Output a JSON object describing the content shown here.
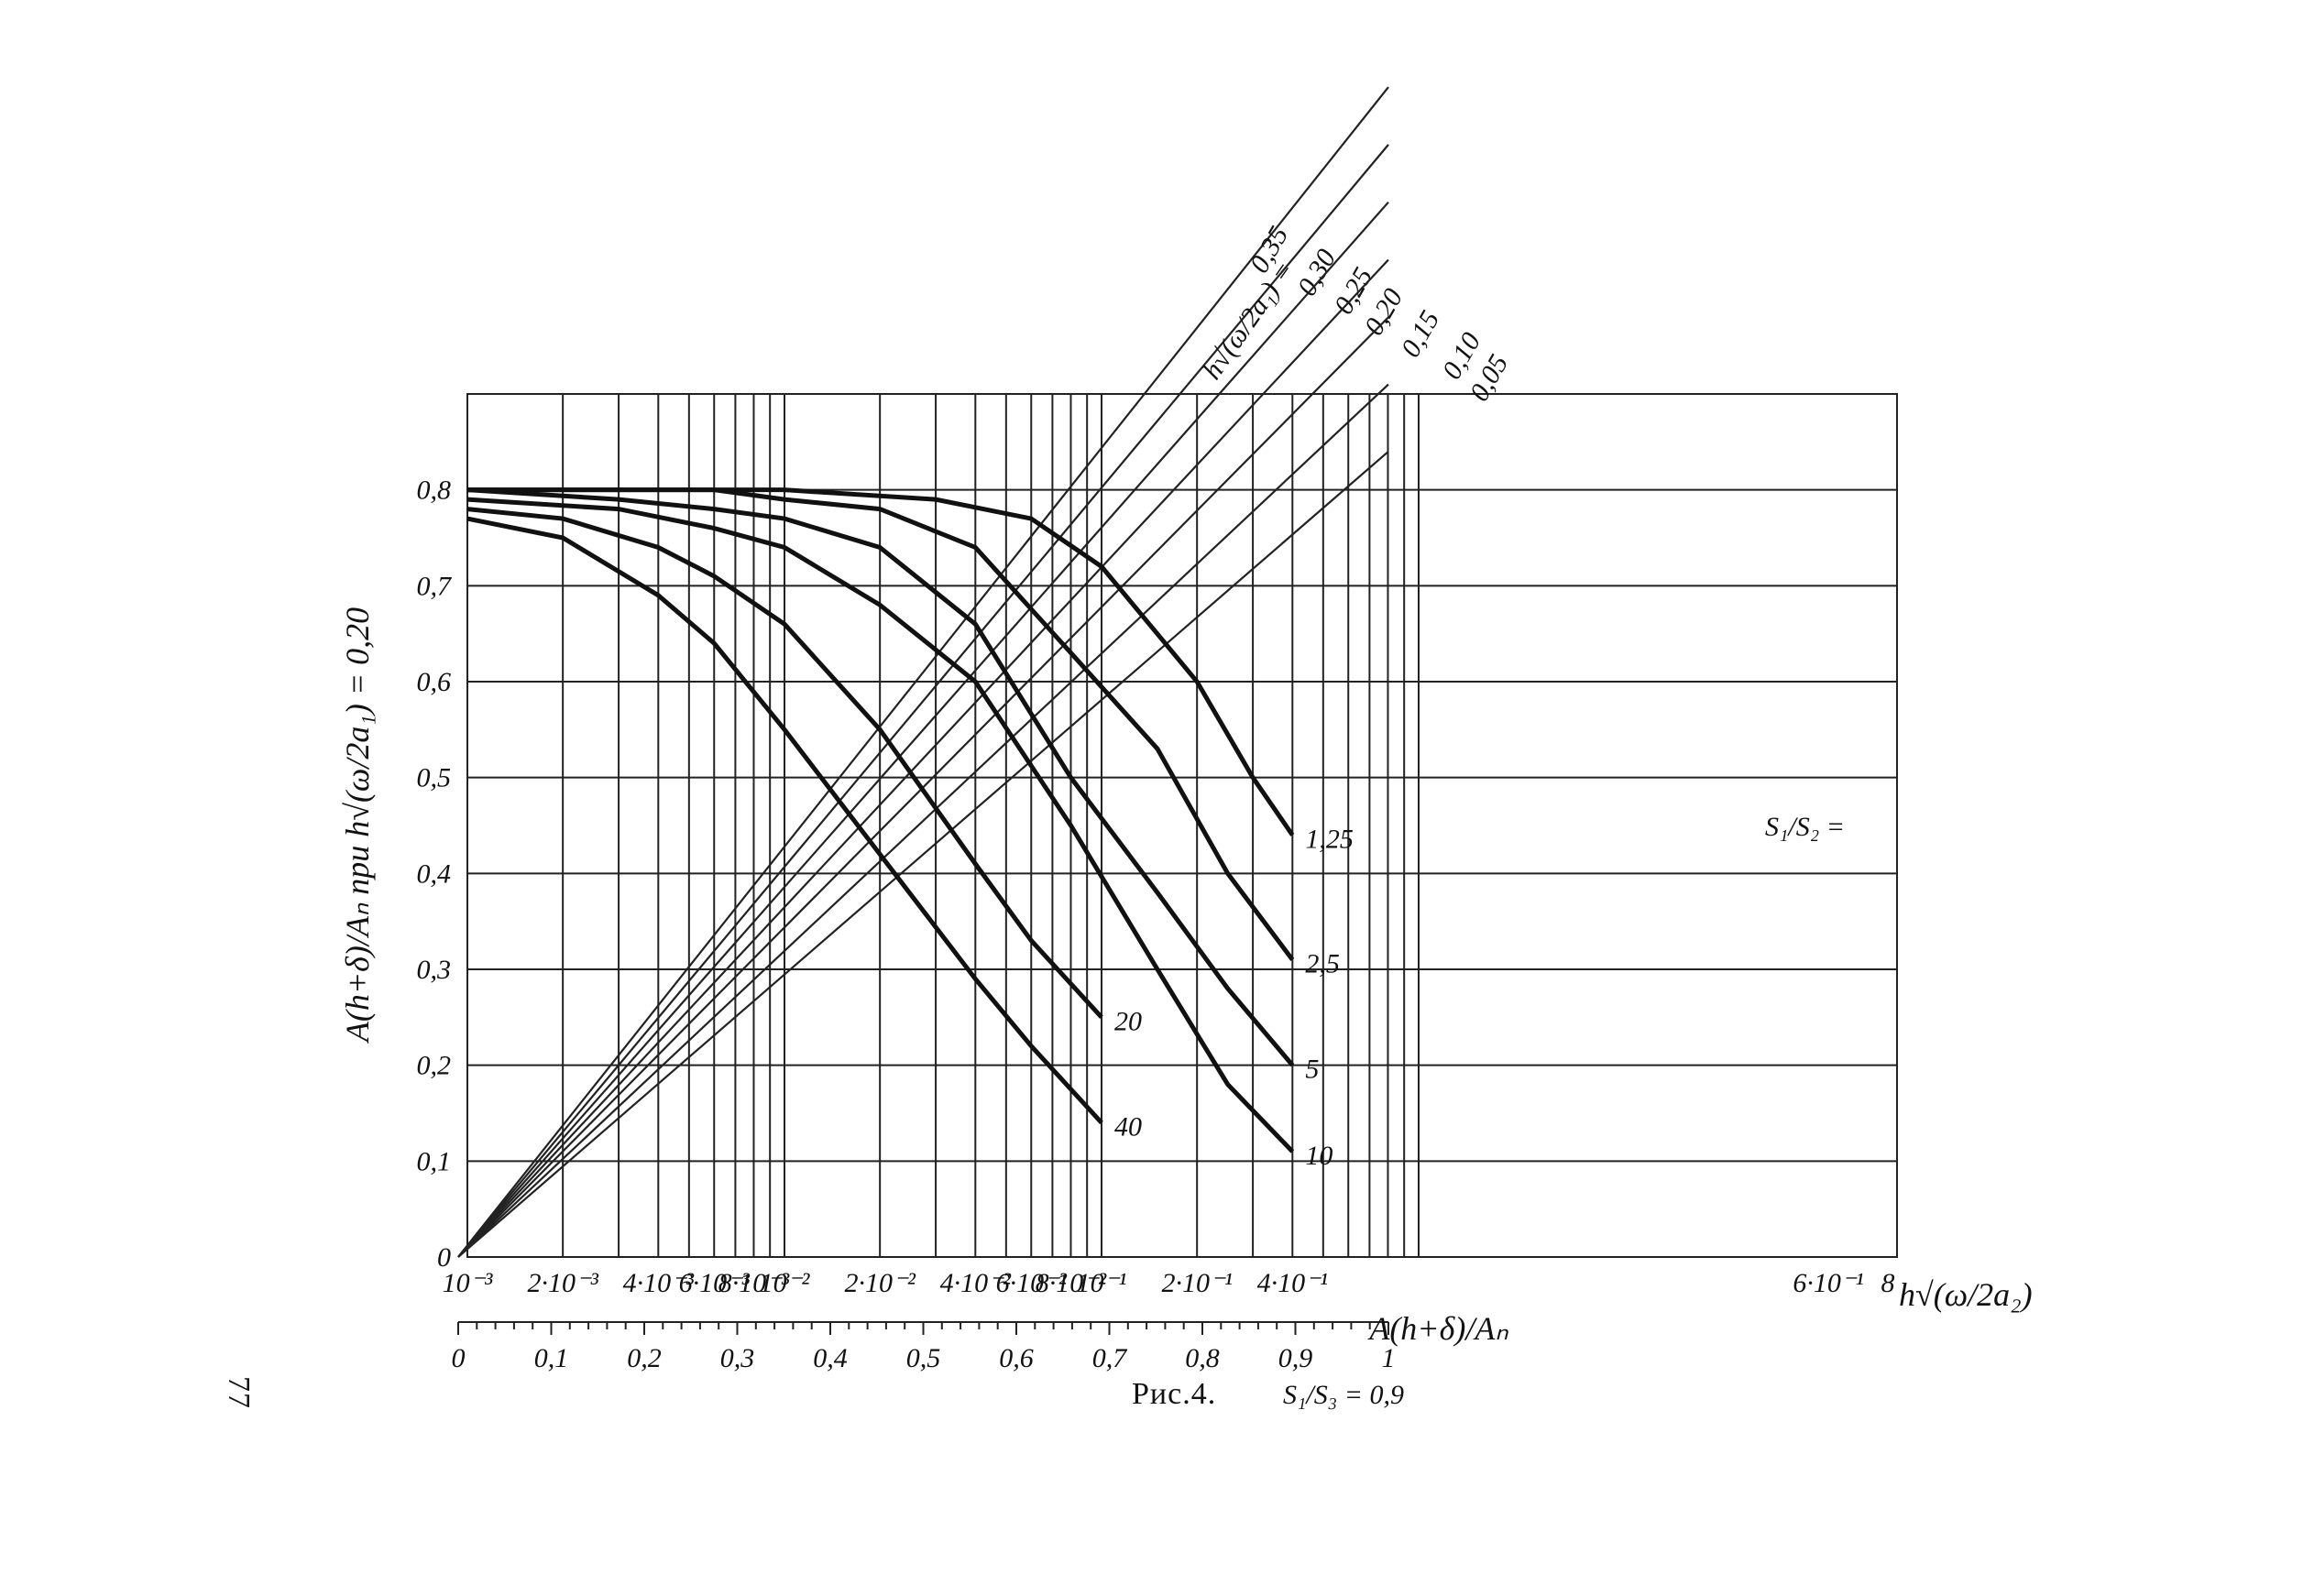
{
  "page_number": "77",
  "chart_data": {
    "type": "line",
    "caption": "Рис.4.",
    "caption_ratio": "S₁/S₃ = 0,9",
    "y_axis": {
      "label": "A(h+δ)/Aₙ при h√(ω/2a₁) = 0,20",
      "ylim": [
        0,
        0.9
      ],
      "ticks": [
        "0",
        "0,1",
        "0,2",
        "0,3",
        "0,4",
        "0,5",
        "0,6",
        "0,7",
        "0,8"
      ]
    },
    "x_axis_log": {
      "label": "h√(ω/2a₂)",
      "scale": "log",
      "xlim": [
        0.001,
        1
      ],
      "ticks": [
        {
          "v": 0.001,
          "t": "10⁻³"
        },
        {
          "v": 0.002,
          "t": "2·10⁻³"
        },
        {
          "v": 0.004,
          "t": "4·10⁻³"
        },
        {
          "v": 0.006,
          "t": "6·10⁻³"
        },
        {
          "v": 0.008,
          "t": "8·10⁻³"
        },
        {
          "v": 0.01,
          "t": "10⁻²"
        },
        {
          "v": 0.02,
          "t": "2·10⁻²"
        },
        {
          "v": 0.04,
          "t": "4·10⁻²"
        },
        {
          "v": 0.06,
          "t": "6·10⁻²"
        },
        {
          "v": 0.08,
          "t": "8·10⁻²"
        },
        {
          "v": 0.1,
          "t": "10⁻¹"
        },
        {
          "v": 0.2,
          "t": "2·10⁻¹"
        },
        {
          "v": 0.4,
          "t": "4·10⁻¹"
        },
        {
          "v": 0.6,
          "t": "6·10⁻¹"
        },
        {
          "v": 0.8,
          "t": "8"
        }
      ]
    },
    "x_axis_linear": {
      "label": "A(h+δ)/Aₙ",
      "xlim": [
        0,
        1
      ],
      "ticks": [
        "0",
        "0,1",
        "0,2",
        "0,3",
        "0,4",
        "0,5",
        "0,6",
        "0,7",
        "0,8",
        "0,9",
        "1"
      ]
    },
    "ratio_family": {
      "label": "S₁/S₂ =",
      "series": [
        {
          "name": "1,25",
          "x": [
            0.001,
            0.003,
            0.01,
            0.03,
            0.06,
            0.1,
            0.2,
            0.3,
            0.4
          ],
          "y": [
            0.8,
            0.8,
            0.8,
            0.79,
            0.77,
            0.72,
            0.6,
            0.5,
            0.44
          ]
        },
        {
          "name": "2,5",
          "x": [
            0.001,
            0.003,
            0.006,
            0.01,
            0.02,
            0.04,
            0.08,
            0.15,
            0.25,
            0.4
          ],
          "y": [
            0.8,
            0.8,
            0.8,
            0.79,
            0.78,
            0.74,
            0.63,
            0.53,
            0.4,
            0.31
          ]
        },
        {
          "name": "5",
          "x": [
            0.001,
            0.003,
            0.006,
            0.01,
            0.02,
            0.04,
            0.08,
            0.15,
            0.25,
            0.4
          ],
          "y": [
            0.8,
            0.79,
            0.78,
            0.77,
            0.74,
            0.66,
            0.5,
            0.38,
            0.28,
            0.2
          ]
        },
        {
          "name": "10",
          "x": [
            0.001,
            0.003,
            0.006,
            0.01,
            0.02,
            0.04,
            0.08,
            0.15,
            0.25,
            0.4
          ],
          "y": [
            0.79,
            0.78,
            0.76,
            0.74,
            0.68,
            0.6,
            0.45,
            0.3,
            0.18,
            0.11
          ]
        },
        {
          "name": "20",
          "x": [
            0.001,
            0.002,
            0.004,
            0.006,
            0.01,
            0.02,
            0.04,
            0.06,
            0.1
          ],
          "y": [
            0.78,
            0.77,
            0.74,
            0.71,
            0.66,
            0.55,
            0.41,
            0.33,
            0.25
          ]
        },
        {
          "name": "40",
          "x": [
            0.001,
            0.002,
            0.004,
            0.006,
            0.01,
            0.02,
            0.04,
            0.06,
            0.1
          ],
          "y": [
            0.77,
            0.75,
            0.69,
            0.64,
            0.55,
            0.42,
            0.29,
            0.22,
            0.14
          ]
        }
      ]
    },
    "depth_family": {
      "label": "h√(ω/2a₁) =",
      "series": [
        {
          "name": "0,35",
          "x": [
            0,
            1
          ],
          "y": [
            0,
            1.22
          ]
        },
        {
          "name": "0,30",
          "x": [
            0,
            1
          ],
          "y": [
            0,
            1.16
          ]
        },
        {
          "name": "0,25",
          "x": [
            0,
            1
          ],
          "y": [
            0,
            1.1
          ]
        },
        {
          "name": "0,20",
          "x": [
            0,
            1
          ],
          "y": [
            0,
            1.04
          ]
        },
        {
          "name": "0,15",
          "x": [
            0,
            1
          ],
          "y": [
            0,
            0.98
          ]
        },
        {
          "name": "0,10",
          "x": [
            0,
            1
          ],
          "y": [
            0,
            0.91
          ]
        },
        {
          "name": "0,05",
          "x": [
            0,
            1
          ],
          "y": [
            0,
            0.84
          ]
        }
      ]
    }
  }
}
